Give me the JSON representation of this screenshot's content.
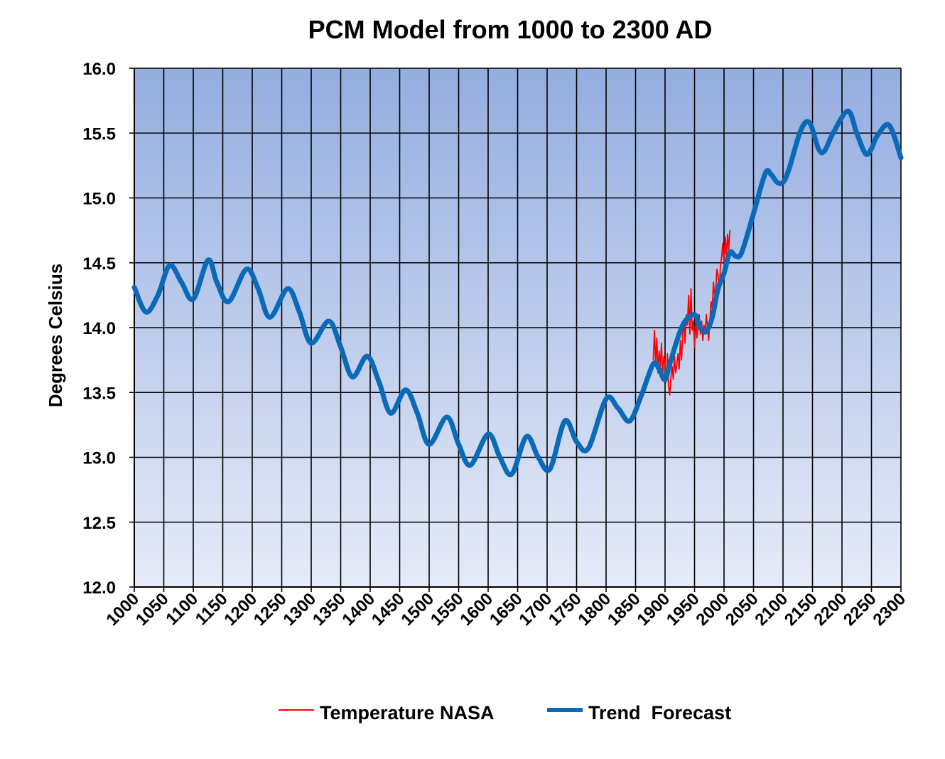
{
  "chart_data": {
    "type": "line",
    "title": "PCM Model from 1000 to 2300 AD",
    "ylabel": "Degrees Celsius",
    "xlabel": "",
    "xlim": [
      1000,
      2300
    ],
    "ylim": [
      12.0,
      16.0
    ],
    "grid": true,
    "legend_position": "bottom",
    "x_ticks": [
      "1000",
      "1050",
      "1100",
      "1150",
      "1200",
      "1250",
      "1300",
      "1350",
      "1400",
      "1450",
      "1500",
      "1550",
      "1600",
      "1650",
      "1700",
      "1750",
      "1800",
      "1850",
      "1900",
      "1950",
      "2000",
      "2050",
      "2100",
      "2150",
      "2200",
      "2250",
      "2300"
    ],
    "y_ticks": [
      "12.0",
      "12.5",
      "13.0",
      "13.5",
      "14.0",
      "14.5",
      "15.0",
      "15.5",
      "16.0"
    ],
    "colors": {
      "plot_bg_top": "#94ade0",
      "plot_bg_bottom": "#e6ebf8",
      "grid": "#000000",
      "series_nasa": "#ff0000",
      "series_trend": "#0a6ab8"
    },
    "series": [
      {
        "name": "Temperature NASA",
        "color": "#ff0000",
        "x": [
          1880,
          1882,
          1884,
          1886,
          1888,
          1890,
          1892,
          1894,
          1896,
          1898,
          1900,
          1902,
          1904,
          1906,
          1908,
          1910,
          1912,
          1914,
          1916,
          1918,
          1920,
          1922,
          1924,
          1926,
          1928,
          1930,
          1932,
          1934,
          1936,
          1938,
          1940,
          1942,
          1944,
          1946,
          1948,
          1950,
          1952,
          1954,
          1956,
          1958,
          1960,
          1962,
          1964,
          1966,
          1968,
          1970,
          1972,
          1974,
          1976,
          1978,
          1980,
          1982,
          1984,
          1986,
          1988,
          1990,
          1992,
          1994,
          1996,
          1998,
          2000,
          2002,
          2004,
          2006,
          2008,
          2010
        ],
        "y": [
          13.75,
          13.98,
          13.72,
          13.92,
          13.65,
          13.82,
          13.7,
          13.88,
          13.62,
          13.78,
          13.72,
          13.58,
          13.8,
          13.55,
          13.48,
          13.62,
          13.7,
          13.6,
          13.78,
          13.65,
          13.72,
          13.8,
          13.68,
          13.9,
          13.75,
          13.95,
          14.05,
          13.88,
          14.1,
          14.02,
          14.25,
          13.95,
          14.3,
          13.98,
          14.05,
          13.85,
          14.08,
          13.92,
          14.0,
          14.1,
          13.95,
          14.05,
          13.9,
          14.02,
          13.95,
          14.1,
          14.0,
          13.9,
          14.05,
          14.2,
          14.15,
          14.35,
          14.25,
          14.3,
          14.45,
          14.4,
          14.28,
          14.48,
          14.55,
          14.65,
          14.5,
          14.7,
          14.55,
          14.72,
          14.6,
          14.75
        ]
      },
      {
        "name": "Trend  Forecast",
        "color": "#0a6ab8",
        "x": [
          1000,
          1020,
          1040,
          1060,
          1080,
          1100,
          1125,
          1140,
          1160,
          1190,
          1210,
          1230,
          1260,
          1280,
          1300,
          1330,
          1350,
          1370,
          1395,
          1415,
          1435,
          1460,
          1480,
          1500,
          1530,
          1550,
          1570,
          1600,
          1620,
          1640,
          1665,
          1685,
          1705,
          1730,
          1750,
          1770,
          1800,
          1820,
          1840,
          1860,
          1880,
          1890,
          1900,
          1910,
          1930,
          1950,
          1960,
          1970,
          1980,
          1990,
          2000,
          2010,
          2020,
          2030,
          2050,
          2070,
          2080,
          2090,
          2100,
          2110,
          2130,
          2145,
          2160,
          2170,
          2185,
          2210,
          2225,
          2240,
          2250,
          2260,
          2280,
          2300
        ],
        "y": [
          14.31,
          14.12,
          14.25,
          14.48,
          14.35,
          14.22,
          14.52,
          14.35,
          14.2,
          14.45,
          14.3,
          14.08,
          14.3,
          14.12,
          13.88,
          14.05,
          13.85,
          13.62,
          13.78,
          13.58,
          13.34,
          13.52,
          13.34,
          13.1,
          13.31,
          13.1,
          12.94,
          13.18,
          13.0,
          12.87,
          13.16,
          13.0,
          12.91,
          13.28,
          13.12,
          13.07,
          13.45,
          13.38,
          13.28,
          13.48,
          13.72,
          13.68,
          13.6,
          13.75,
          14.02,
          14.1,
          14.0,
          13.97,
          14.08,
          14.3,
          14.42,
          14.58,
          14.55,
          14.58,
          14.88,
          15.19,
          15.18,
          15.12,
          15.12,
          15.22,
          15.52,
          15.58,
          15.38,
          15.36,
          15.5,
          15.67,
          15.5,
          15.34,
          15.38,
          15.48,
          15.56,
          15.31
        ]
      }
    ]
  }
}
